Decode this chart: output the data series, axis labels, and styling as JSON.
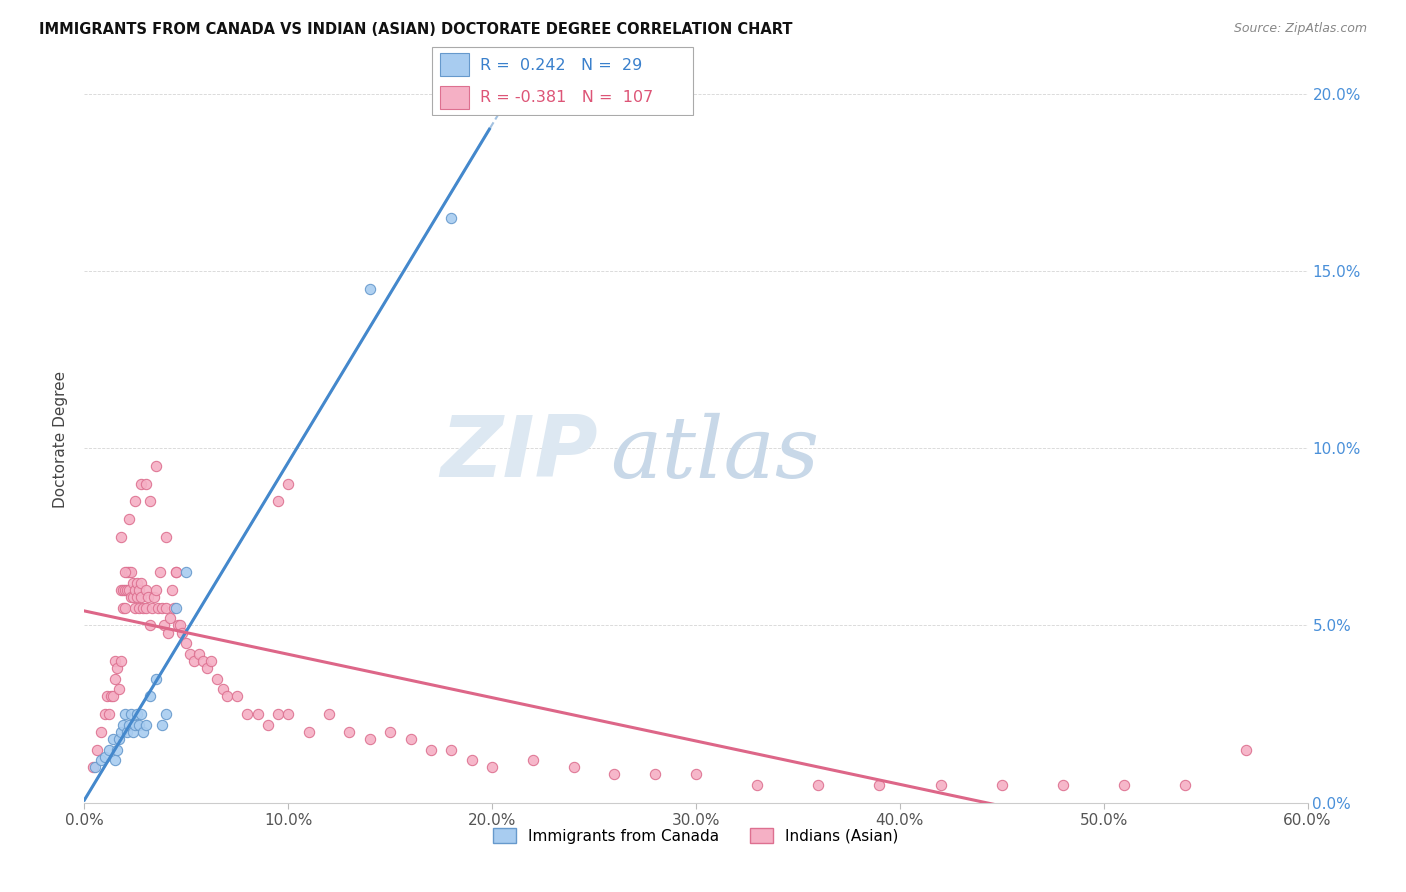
{
  "title": "IMMIGRANTS FROM CANADA VS INDIAN (ASIAN) DOCTORATE DEGREE CORRELATION CHART",
  "source": "Source: ZipAtlas.com",
  "ylabel": "Doctorate Degree",
  "xlim": [
    0.0,
    0.6
  ],
  "ylim": [
    0.0,
    0.205
  ],
  "xtick_vals": [
    0.0,
    0.1,
    0.2,
    0.3,
    0.4,
    0.5,
    0.6
  ],
  "xticklabels": [
    "0.0%",
    "10.0%",
    "20.0%",
    "30.0%",
    "40.0%",
    "50.0%",
    "60.0%"
  ],
  "ytick_vals": [
    0.0,
    0.05,
    0.1,
    0.15,
    0.2
  ],
  "yticklabels_right": [
    "0.0%",
    "5.0%",
    "10.0%",
    "15.0%",
    "20.0%"
  ],
  "canada_color": "#a8ccf0",
  "canada_edge": "#6699cc",
  "india_color": "#f5b0c5",
  "india_edge": "#dd7090",
  "blue_line_color": "#4488cc",
  "pink_line_color": "#dd6688",
  "dashed_line_color": "#99bbdd",
  "watermark_zip_color": "#dde8f2",
  "watermark_atlas_color": "#c8d8e8",
  "legend_R_canada": "0.242",
  "legend_N_canada": "29",
  "legend_R_india": "-0.381",
  "legend_N_india": "107",
  "canada_label": "Immigrants from Canada",
  "india_label": "Indians (Asian)",
  "canada_x": [
    0.005,
    0.008,
    0.01,
    0.012,
    0.014,
    0.015,
    0.016,
    0.017,
    0.018,
    0.019,
    0.02,
    0.021,
    0.022,
    0.023,
    0.024,
    0.025,
    0.026,
    0.027,
    0.028,
    0.029,
    0.03,
    0.032,
    0.035,
    0.038,
    0.04,
    0.045,
    0.05,
    0.14,
    0.18
  ],
  "canada_y": [
    0.01,
    0.012,
    0.013,
    0.015,
    0.018,
    0.012,
    0.015,
    0.018,
    0.02,
    0.022,
    0.025,
    0.02,
    0.022,
    0.025,
    0.02,
    0.022,
    0.025,
    0.022,
    0.025,
    0.02,
    0.022,
    0.03,
    0.035,
    0.022,
    0.025,
    0.055,
    0.065,
    0.145,
    0.165
  ],
  "india_x": [
    0.004,
    0.006,
    0.008,
    0.01,
    0.011,
    0.012,
    0.013,
    0.014,
    0.015,
    0.015,
    0.016,
    0.017,
    0.018,
    0.018,
    0.019,
    0.019,
    0.02,
    0.02,
    0.021,
    0.021,
    0.022,
    0.022,
    0.023,
    0.023,
    0.024,
    0.024,
    0.025,
    0.025,
    0.026,
    0.026,
    0.027,
    0.027,
    0.028,
    0.028,
    0.029,
    0.03,
    0.03,
    0.031,
    0.032,
    0.033,
    0.034,
    0.035,
    0.036,
    0.037,
    0.038,
    0.039,
    0.04,
    0.041,
    0.042,
    0.043,
    0.044,
    0.045,
    0.046,
    0.047,
    0.048,
    0.05,
    0.052,
    0.054,
    0.056,
    0.058,
    0.06,
    0.062,
    0.065,
    0.068,
    0.07,
    0.075,
    0.08,
    0.085,
    0.09,
    0.095,
    0.1,
    0.11,
    0.12,
    0.13,
    0.14,
    0.15,
    0.16,
    0.17,
    0.18,
    0.19,
    0.2,
    0.22,
    0.24,
    0.26,
    0.28,
    0.3,
    0.33,
    0.36,
    0.39,
    0.42,
    0.45,
    0.48,
    0.51,
    0.54,
    0.57,
    0.018,
    0.02,
    0.022,
    0.025,
    0.028,
    0.03,
    0.032,
    0.035,
    0.04,
    0.045,
    0.095,
    0.1
  ],
  "india_y": [
    0.01,
    0.015,
    0.02,
    0.025,
    0.03,
    0.025,
    0.03,
    0.03,
    0.04,
    0.035,
    0.038,
    0.032,
    0.04,
    0.06,
    0.055,
    0.06,
    0.06,
    0.055,
    0.06,
    0.065,
    0.065,
    0.06,
    0.065,
    0.058,
    0.062,
    0.058,
    0.06,
    0.055,
    0.062,
    0.058,
    0.06,
    0.055,
    0.062,
    0.058,
    0.055,
    0.06,
    0.055,
    0.058,
    0.05,
    0.055,
    0.058,
    0.06,
    0.055,
    0.065,
    0.055,
    0.05,
    0.055,
    0.048,
    0.052,
    0.06,
    0.055,
    0.065,
    0.05,
    0.05,
    0.048,
    0.045,
    0.042,
    0.04,
    0.042,
    0.04,
    0.038,
    0.04,
    0.035,
    0.032,
    0.03,
    0.03,
    0.025,
    0.025,
    0.022,
    0.025,
    0.025,
    0.02,
    0.025,
    0.02,
    0.018,
    0.02,
    0.018,
    0.015,
    0.015,
    0.012,
    0.01,
    0.012,
    0.01,
    0.008,
    0.008,
    0.008,
    0.005,
    0.005,
    0.005,
    0.005,
    0.005,
    0.005,
    0.005,
    0.005,
    0.015,
    0.075,
    0.065,
    0.08,
    0.085,
    0.09,
    0.09,
    0.085,
    0.095,
    0.075,
    0.065,
    0.085,
    0.09
  ]
}
